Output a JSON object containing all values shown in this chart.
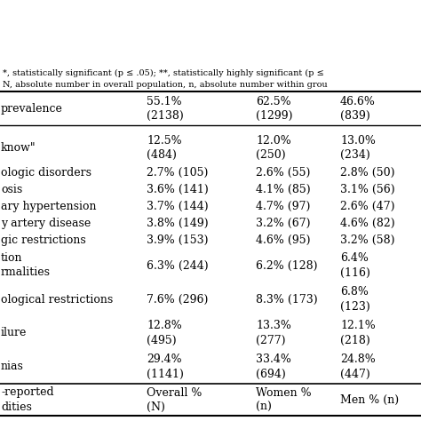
{
  "headers": [
    "-reported\ndities",
    "Overall %\n(N)",
    "Women %\n(n)",
    "Men % (n)"
  ],
  "rows": [
    {
      "left": "nias",
      "c1": "29.4%\n(1141)",
      "c2": "33.4%\n(694)",
      "c3": "24.8%\n(447)",
      "tall": true
    },
    {
      "left": "ilure",
      "c1": "12.8%\n(495)",
      "c2": "13.3%\n(277)",
      "c3": "12.1%\n(218)",
      "tall": true
    },
    {
      "left": "ological restrictions",
      "c1": "7.6% (296)",
      "c2": "8.3% (173)",
      "c3": "6.8%\n(123)",
      "tall": true
    },
    {
      "left": "tion\nrmalities",
      "c1": "6.3% (244)",
      "c2": "6.2% (128)",
      "c3": "6.4%\n(116)",
      "tall": true
    },
    {
      "left": "gic restrictions",
      "c1": "3.9% (153)",
      "c2": "4.6% (95)",
      "c3": "3.2% (58)",
      "tall": false
    },
    {
      "left": "y artery disease",
      "c1": "3.8% (149)",
      "c2": "3.2% (67)",
      "c3": "4.6% (82)",
      "tall": false
    },
    {
      "left": "ary hypertension",
      "c1": "3.7% (144)",
      "c2": "4.7% (97)",
      "c3": "2.6% (47)",
      "tall": false
    },
    {
      "left": "osis",
      "c1": "3.6% (141)",
      "c2": "4.1% (85)",
      "c3": "3.1% (56)",
      "tall": false
    },
    {
      "left": "ologic disorders",
      "c1": "2.7% (105)",
      "c2": "2.6% (55)",
      "c3": "2.8% (50)",
      "tall": false
    },
    {
      "left": "know\"",
      "c1": "12.5%\n(484)",
      "c2": "12.0%\n(250)",
      "c3": "13.0%\n(234)",
      "tall": true
    }
  ],
  "footer": {
    "left": "prevalence",
    "c1": "55.1%\n(2138)",
    "c2": "62.5%\n(1299)",
    "c3": "46.6%\n(839)"
  },
  "fn1": "N, absolute number in overall population, n, absolute number within grou",
  "fn2": "*, statistically significant (p ≤ .05); **, statistically highly significant (p ≤",
  "bg": "#ffffff",
  "fg": "#000000",
  "fs": 9.0,
  "fs_fn": 7.0
}
